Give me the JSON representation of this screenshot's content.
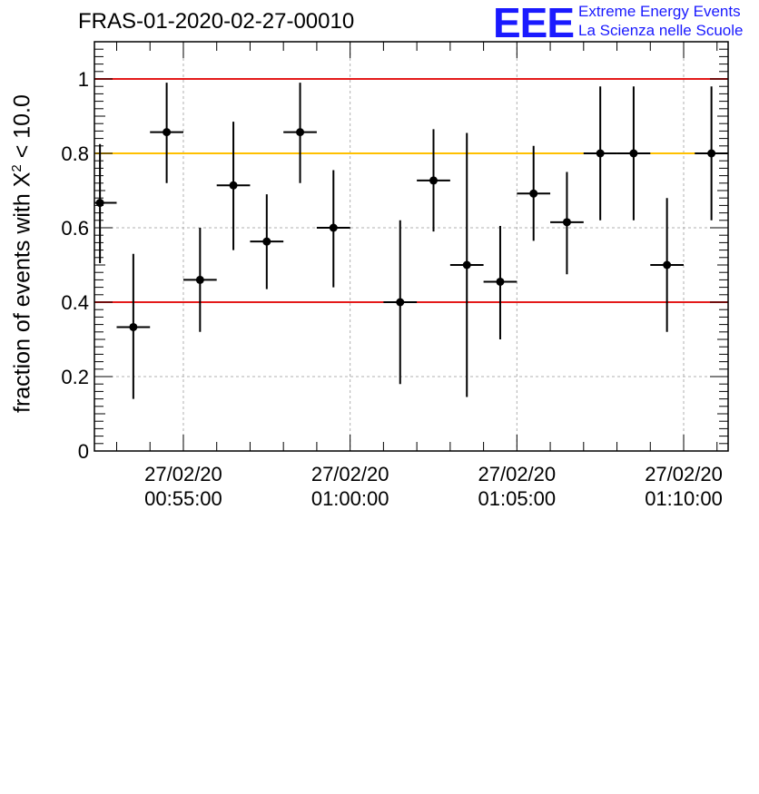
{
  "header": {
    "title": "FRAS-01-2020-02-27-00010",
    "logo_text": "EEE",
    "logo_line1": "Extreme Energy Events",
    "logo_line2": "La Scienza nelle Scuole"
  },
  "axis": {
    "ylabel_prefix": "fraction of events with X",
    "ylabel_sup": "2",
    "ylabel_suffix": " < 10.0"
  },
  "colors": {
    "red_line": "#e41a1a",
    "yellow_line": "#ffc000",
    "points": "#000000",
    "logo": "#1a1aff"
  },
  "chart_data": {
    "type": "scatter",
    "x_unit": "time (27/02/20)",
    "xlim": [
      "00:52:20",
      "01:11:20"
    ],
    "ylim": [
      0,
      1.1
    ],
    "y_ticks": [
      "0",
      "0.2",
      "0.4",
      "0.6",
      "0.8",
      "1"
    ],
    "y_tick_values": [
      0,
      0.2,
      0.4,
      0.6,
      0.8,
      1.0
    ],
    "x_ticks": [
      {
        "date": "27/02/20",
        "time": "00:55:00"
      },
      {
        "date": "27/02/20",
        "time": "01:00:00"
      },
      {
        "date": "27/02/20",
        "time": "01:05:00"
      },
      {
        "date": "27/02/20",
        "time": "01:10:00"
      }
    ],
    "x_tick_times": [
      "00:55:00",
      "01:00:00",
      "01:05:00",
      "01:10:00"
    ],
    "grid": true,
    "x_error_half_width": "00:00:30",
    "reference_lines": [
      {
        "y": 1.0,
        "color": "red"
      },
      {
        "y": 0.8,
        "color": "yellow"
      },
      {
        "y": 0.4,
        "color": "red"
      }
    ],
    "points": [
      {
        "x": "00:52:30",
        "y": 0.667,
        "y_low": 0.505,
        "y_high": 0.825
      },
      {
        "x": "00:53:30",
        "y": 0.333,
        "y_low": 0.14,
        "y_high": 0.53
      },
      {
        "x": "00:54:30",
        "y": 0.857,
        "y_low": 0.72,
        "y_high": 0.99
      },
      {
        "x": "00:55:30",
        "y": 0.46,
        "y_low": 0.32,
        "y_high": 0.6
      },
      {
        "x": "00:56:30",
        "y": 0.714,
        "y_low": 0.54,
        "y_high": 0.885
      },
      {
        "x": "00:57:30",
        "y": 0.563,
        "y_low": 0.435,
        "y_high": 0.69
      },
      {
        "x": "00:58:30",
        "y": 0.857,
        "y_low": 0.72,
        "y_high": 0.99
      },
      {
        "x": "00:59:30",
        "y": 0.6,
        "y_low": 0.44,
        "y_high": 0.755
      },
      {
        "x": "01:01:30",
        "y": 0.4,
        "y_low": 0.18,
        "y_high": 0.62
      },
      {
        "x": "01:02:30",
        "y": 0.727,
        "y_low": 0.59,
        "y_high": 0.865
      },
      {
        "x": "01:03:30",
        "y": 0.5,
        "y_low": 0.145,
        "y_high": 0.855
      },
      {
        "x": "01:04:30",
        "y": 0.455,
        "y_low": 0.3,
        "y_high": 0.605
      },
      {
        "x": "01:05:30",
        "y": 0.692,
        "y_low": 0.565,
        "y_high": 0.82
      },
      {
        "x": "01:06:30",
        "y": 0.615,
        "y_low": 0.475,
        "y_high": 0.75
      },
      {
        "x": "01:07:30",
        "y": 0.8,
        "y_low": 0.62,
        "y_high": 0.98
      },
      {
        "x": "01:08:30",
        "y": 0.8,
        "y_low": 0.62,
        "y_high": 0.98
      },
      {
        "x": "01:09:30",
        "y": 0.5,
        "y_low": 0.32,
        "y_high": 0.68
      },
      {
        "x": "01:10:50",
        "y": 0.8,
        "y_low": 0.62,
        "y_high": 0.98
      }
    ]
  }
}
